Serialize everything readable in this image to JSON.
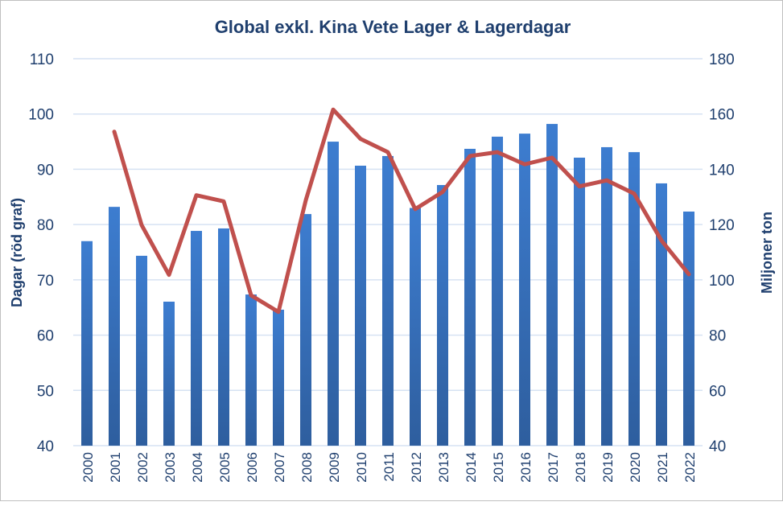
{
  "chart_data": {
    "type": "bar+line",
    "title": "Global exkl. Kina Vete Lager & Lagerdagar",
    "ylabel_left": "Dagar (röd graf)",
    "ylabel_right": "Miljoner ton",
    "categories": [
      "2000",
      "2001",
      "2002",
      "2003",
      "2004",
      "2005",
      "2006",
      "2007",
      "2008",
      "2009",
      "2010",
      "2011",
      "2012",
      "2013",
      "2014",
      "2015",
      "2016",
      "2017",
      "2018",
      "2019",
      "2020",
      "2021",
      "2022"
    ],
    "ylim_left": [
      40,
      110
    ],
    "ylim_right": [
      40,
      180
    ],
    "yticks_left": [
      40,
      50,
      60,
      70,
      80,
      90,
      100,
      110
    ],
    "yticks_right": [
      40,
      60,
      80,
      100,
      120,
      140,
      160,
      180
    ],
    "grid": true,
    "series": [
      {
        "type": "bar",
        "axis": "right",
        "color": "#3A78C3",
        "values": [
          114,
          126.4,
          108.7,
          92.1,
          117.7,
          118.6,
          94.7,
          89.2,
          123.8,
          150,
          141.3,
          144.8,
          126,
          134.3,
          147.4,
          151.8,
          152.9,
          156.4,
          144.2,
          148,
          146.2,
          134.9,
          124.7
        ]
      },
      {
        "type": "line",
        "axis": "left",
        "color": "#C0504D",
        "values": [
          null,
          96.8,
          79.9,
          70.9,
          85.3,
          84.2,
          67.2,
          64.2,
          84.4,
          100.8,
          95.5,
          93.1,
          82.8,
          85.9,
          92.4,
          93.1,
          90.9,
          92.1,
          86.9,
          88,
          85.6,
          77.1,
          71
        ]
      }
    ]
  }
}
